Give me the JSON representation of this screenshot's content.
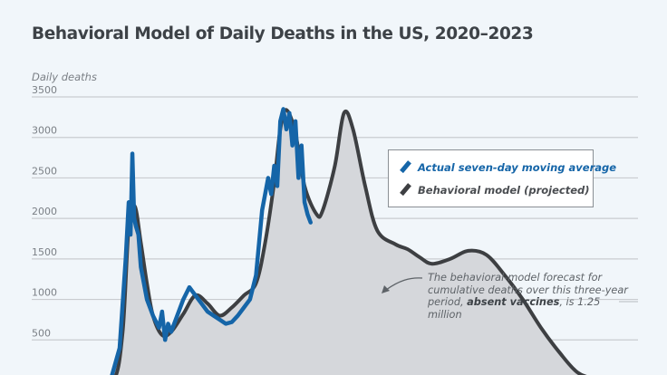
{
  "chart_data": {
    "type": "line",
    "title": "Behavioral Model of Daily Deaths in the US, 2020–2023",
    "xlabel": "",
    "ylabel": "Daily deaths",
    "ylim": [
      0,
      3500
    ],
    "yticks": [
      500,
      1000,
      1500,
      2000,
      2500,
      3000,
      3500
    ],
    "ytick_labels": [
      "500",
      "1000",
      "1500",
      "2000",
      "2500",
      "3000",
      "3500"
    ],
    "grid": true,
    "legend_position": "top-right",
    "x_units": "fraction of 2020–2023 timeline (0 = start, 1 = end)",
    "series": [
      {
        "name": "Behavioral model (projected)",
        "color": "#3d3f42",
        "fill": "#d5d7db",
        "x": [
          0.0,
          0.05,
          0.1,
          0.135,
          0.15,
          0.16,
          0.17,
          0.18,
          0.19,
          0.2,
          0.215,
          0.23,
          0.25,
          0.27,
          0.29,
          0.31,
          0.33,
          0.35,
          0.37,
          0.385,
          0.4,
          0.41,
          0.42,
          0.435,
          0.45,
          0.47,
          0.48,
          0.5,
          0.515,
          0.53,
          0.55,
          0.57,
          0.6,
          0.62,
          0.64,
          0.66,
          0.69,
          0.72,
          0.75,
          0.78,
          0.81,
          0.84,
          0.87,
          0.9,
          0.93,
          0.96,
          1.0
        ],
        "values": [
          0,
          0,
          0,
          0,
          600,
          1900,
          2150,
          1700,
          1200,
          800,
          560,
          600,
          820,
          1050,
          950,
          800,
          900,
          1050,
          1200,
          1700,
          2450,
          3100,
          3340,
          3050,
          2400,
          2050,
          2100,
          2650,
          3300,
          3100,
          2400,
          1850,
          1680,
          1620,
          1520,
          1440,
          1500,
          1600,
          1550,
          1300,
          1000,
          650,
          350,
          100,
          20,
          0,
          0
        ]
      },
      {
        "name": "Actual seven-day moving average",
        "color": "#1565a8",
        "x": [
          0.13,
          0.145,
          0.155,
          0.16,
          0.163,
          0.166,
          0.169,
          0.172,
          0.176,
          0.18,
          0.185,
          0.19,
          0.2,
          0.21,
          0.215,
          0.22,
          0.225,
          0.23,
          0.24,
          0.25,
          0.26,
          0.27,
          0.28,
          0.29,
          0.3,
          0.31,
          0.32,
          0.33,
          0.34,
          0.35,
          0.36,
          0.37,
          0.375,
          0.38,
          0.39,
          0.395,
          0.4,
          0.405,
          0.41,
          0.415,
          0.42,
          0.425,
          0.43,
          0.435,
          0.44,
          0.445,
          0.45,
          0.455,
          0.46
        ],
        "values": [
          0,
          400,
          1500,
          2200,
          1800,
          2800,
          2000,
          1900,
          1800,
          1400,
          1200,
          1000,
          800,
          650,
          850,
          500,
          700,
          600,
          800,
          1000,
          1150,
          1050,
          950,
          850,
          800,
          750,
          700,
          720,
          800,
          900,
          1000,
          1300,
          1700,
          2100,
          2500,
          2300,
          2650,
          2400,
          3200,
          3350,
          3100,
          3300,
          2900,
          3200,
          2500,
          2900,
          2200,
          2050,
          1950
        ]
      }
    ]
  },
  "legend": {
    "items": [
      {
        "label": "Actual seven-day moving average",
        "color": "#1565a8"
      },
      {
        "label": "Behavioral model (projected)",
        "color": "#3d3f42"
      }
    ]
  },
  "annotation": {
    "line1": "The behavioral-model forecast for",
    "line2": "cumulative deaths over this three-year",
    "line3_prefix": "period, ",
    "line3_bold": "absent vaccines",
    "line3_suffix": ", is 1.25 million"
  }
}
